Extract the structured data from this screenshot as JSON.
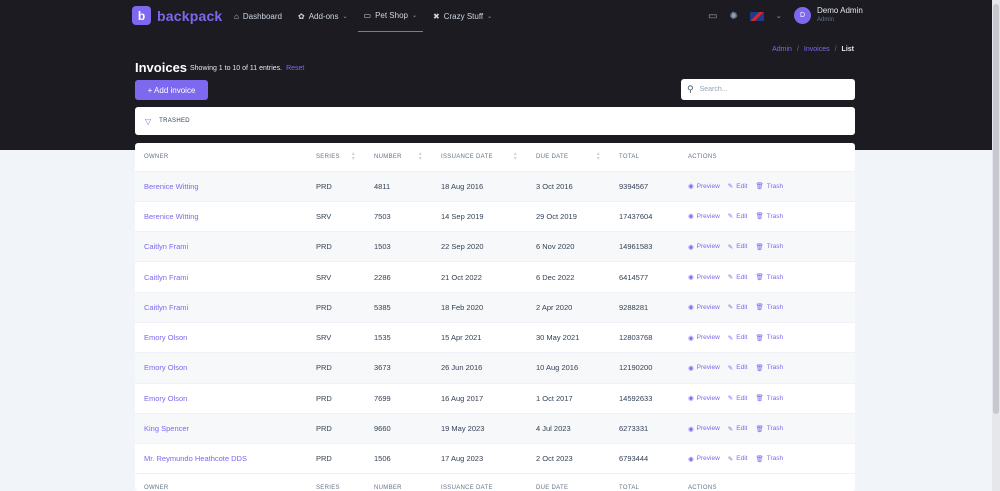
{
  "brand": {
    "logo_letter": "b",
    "name": "backpack"
  },
  "nav": {
    "items": [
      {
        "icon": "⌂",
        "label": "Dashboard"
      },
      {
        "icon": "✿",
        "label": "Add-ons",
        "chevron": "⌄"
      },
      {
        "icon": "▭",
        "label": "Pet Shop",
        "chevron": "⌄",
        "active": true
      },
      {
        "icon": "✖",
        "label": "Crazy Stuff",
        "chevron": "⌄"
      }
    ]
  },
  "user": {
    "initial": "D",
    "name": "Demo Admin",
    "role": "Admin"
  },
  "breadcrumb": {
    "items": [
      "Admin",
      "Invoices"
    ],
    "current": "List",
    "separator": "/"
  },
  "header": {
    "title": "Invoices",
    "entries_text": "Showing 1 to 10 of 11 entries.",
    "reset_label": "Reset",
    "add_button": "+ Add invoice"
  },
  "search": {
    "placeholder": "Search..."
  },
  "filter": {
    "label": "TRASHED"
  },
  "table": {
    "columns": [
      "OWNER",
      "SERIES",
      "NUMBER",
      "ISSUANCE DATE",
      "DUE DATE",
      "TOTAL",
      "ACTIONS"
    ],
    "actions": {
      "preview": "Preview",
      "edit": "Edit",
      "trash": "Trash"
    },
    "rows": [
      [
        "Berenice Witting",
        "PRD",
        "4811",
        "18 Aug 2016",
        "3 Oct 2016",
        "9394567"
      ],
      [
        "Berenice Witting",
        "SRV",
        "7503",
        "14 Sep 2019",
        "29 Oct 2019",
        "17437604"
      ],
      [
        "Caitlyn Frami",
        "PRD",
        "1503",
        "22 Sep 2020",
        "6 Nov 2020",
        "14961583"
      ],
      [
        "Caitlyn Frami",
        "SRV",
        "2286",
        "21 Oct 2022",
        "6 Dec 2022",
        "6414577"
      ],
      [
        "Caitlyn Frami",
        "PRD",
        "5385",
        "18 Feb 2020",
        "2 Apr 2020",
        "9288281"
      ],
      [
        "Emory Olson",
        "SRV",
        "1535",
        "15 Apr 2021",
        "30 May 2021",
        "12803768"
      ],
      [
        "Emory Olson",
        "PRD",
        "3673",
        "26 Jun 2016",
        "10 Aug 2016",
        "12190200"
      ],
      [
        "Emory Olson",
        "PRD",
        "7699",
        "16 Aug 2017",
        "1 Oct 2017",
        "14592633"
      ],
      [
        "King Spencer",
        "PRD",
        "9660",
        "19 May 2023",
        "4 Jul 2023",
        "6273331"
      ],
      [
        "Mr. Reymundo Heathcote DDS",
        "PRD",
        "1506",
        "17 Aug 2023",
        "2 Oct 2023",
        "6793444"
      ]
    ]
  },
  "colors": {
    "accent": "#7c69ef",
    "dark": "#1c1b22"
  }
}
